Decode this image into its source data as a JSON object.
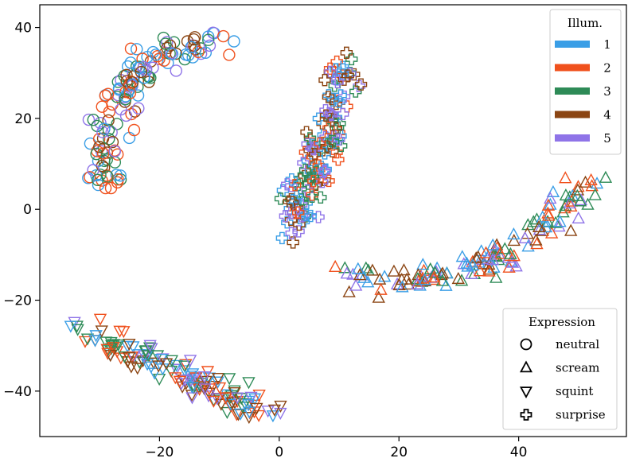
{
  "chart_data": {
    "type": "scatter",
    "xlim": [
      -40,
      58
    ],
    "ylim": [
      -50,
      45
    ],
    "x_ticks": [
      -20,
      0,
      20,
      40
    ],
    "y_ticks": [
      -40,
      -20,
      0,
      20,
      40
    ],
    "x_tick_labels": [
      "−20",
      "0",
      "20",
      "40"
    ],
    "y_tick_labels": [
      "−40",
      "−20",
      "0",
      "20",
      "40"
    ],
    "grid": false,
    "colors": {
      "1": "#3a9ee6",
      "2": "#f0511d",
      "3": "#2e8b57",
      "4": "#8b4513",
      "5": "#8f74e8"
    },
    "legend_illum": {
      "title": "Illum.",
      "placement": "top-right",
      "entries": [
        {
          "label": "1",
          "color": "#3a9ee6"
        },
        {
          "label": "2",
          "color": "#f0511d"
        },
        {
          "label": "3",
          "color": "#2e8b57"
        },
        {
          "label": "4",
          "color": "#8b4513"
        },
        {
          "label": "5",
          "color": "#8f74e8"
        }
      ]
    },
    "legend_expression": {
      "title": "Expression",
      "placement": "bottom-right",
      "entries": [
        {
          "label": "neutral",
          "marker": "circle"
        },
        {
          "label": "scream",
          "marker": "triangle-up"
        },
        {
          "label": "squint",
          "marker": "triangle-down"
        },
        {
          "label": "surprise",
          "marker": "plus"
        }
      ]
    },
    "clusters": [
      {
        "expression": "neutral",
        "marker": "circle",
        "approx_count": 150,
        "path": [
          [
            -29,
            5
          ],
          [
            -29,
            12
          ],
          [
            -28,
            20
          ],
          [
            -26,
            26
          ],
          [
            -23,
            31
          ],
          [
            -19,
            34
          ],
          [
            -14,
            36
          ],
          [
            -9,
            38
          ]
        ]
      },
      {
        "expression": "surprise",
        "marker": "plus",
        "approx_count": 150,
        "path": [
          [
            2,
            -5
          ],
          [
            3,
            0
          ],
          [
            5,
            5
          ],
          [
            6,
            10
          ],
          [
            8,
            16
          ],
          [
            10,
            22
          ],
          [
            11,
            28
          ],
          [
            11,
            33
          ]
        ]
      },
      {
        "expression": "scream",
        "marker": "triangle-up",
        "approx_count": 150,
        "path": [
          [
            12,
            -15
          ],
          [
            20,
            -16
          ],
          [
            27,
            -15
          ],
          [
            33,
            -13
          ],
          [
            38,
            -10
          ],
          [
            44,
            -5
          ],
          [
            48,
            0
          ],
          [
            53,
            6
          ]
        ]
      },
      {
        "expression": "squint",
        "marker": "triangle-down",
        "approx_count": 150,
        "path": [
          [
            -34,
            -25
          ],
          [
            -28,
            -30
          ],
          [
            -22,
            -33
          ],
          [
            -16,
            -36
          ],
          [
            -11,
            -39
          ],
          [
            -6,
            -42
          ],
          [
            -1,
            -44
          ]
        ]
      }
    ]
  }
}
